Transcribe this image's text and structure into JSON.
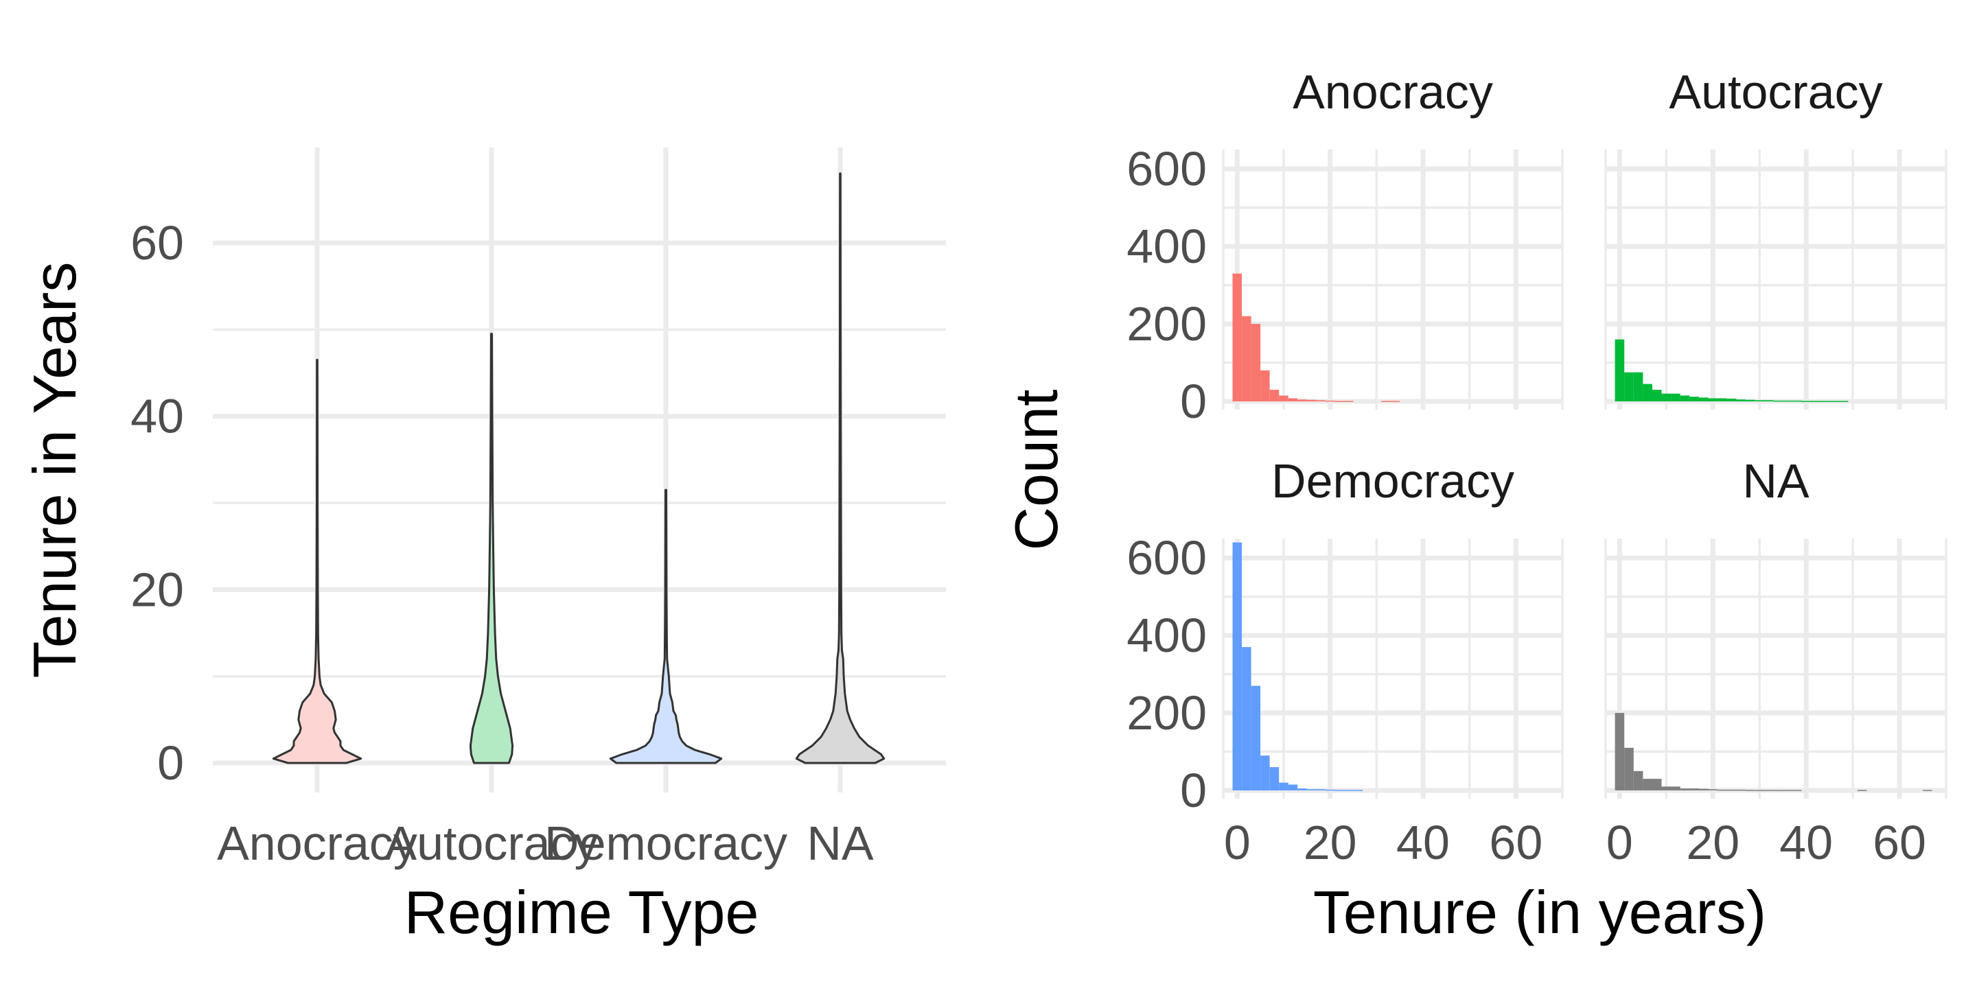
{
  "chart_data": [
    {
      "type": "violin",
      "title": "",
      "xlabel": "Regime Type",
      "ylabel": "Tenure in Years",
      "categories": [
        "Anocracy",
        "Autocracy",
        "Democracy",
        "NA"
      ],
      "ylim": [
        -3.4,
        71
      ],
      "yticks": [
        0,
        20,
        40,
        60
      ],
      "grid": true,
      "legend": "none",
      "series": [
        {
          "category": "Anocracy",
          "color": "#F8766D",
          "max": 46.5,
          "density": [
            [
              0,
              0.5
            ],
            [
              0.5,
              0.75
            ],
            [
              1,
              0.6
            ],
            [
              1.5,
              0.45
            ],
            [
              2,
              0.4
            ],
            [
              2.5,
              0.4
            ],
            [
              3,
              0.35
            ],
            [
              3.5,
              0.3
            ],
            [
              4,
              0.28
            ],
            [
              5,
              0.32
            ],
            [
              6,
              0.3
            ],
            [
              7,
              0.25
            ],
            [
              8,
              0.12
            ],
            [
              9,
              0.06
            ],
            [
              10,
              0.04
            ],
            [
              12,
              0.025
            ],
            [
              15,
              0.015
            ],
            [
              20,
              0.01
            ],
            [
              30,
              0.006
            ],
            [
              46.5,
              0.004
            ]
          ]
        },
        {
          "category": "Autocracy",
          "color": "#00BA38",
          "max": 49.5,
          "density": [
            [
              0,
              0.3
            ],
            [
              1,
              0.35
            ],
            [
              2,
              0.36
            ],
            [
              3,
              0.34
            ],
            [
              4,
              0.32
            ],
            [
              5,
              0.28
            ],
            [
              6,
              0.24
            ],
            [
              7,
              0.2
            ],
            [
              8,
              0.16
            ],
            [
              10,
              0.11
            ],
            [
              12,
              0.08
            ],
            [
              15,
              0.06
            ],
            [
              20,
              0.04
            ],
            [
              25,
              0.03
            ],
            [
              30,
              0.02
            ],
            [
              40,
              0.012
            ],
            [
              49.5,
              0.006
            ]
          ]
        },
        {
          "category": "Democracy",
          "color": "#619CFF",
          "max": 31.5,
          "density": [
            [
              0,
              0.85
            ],
            [
              0.5,
              0.95
            ],
            [
              1,
              0.75
            ],
            [
              1.5,
              0.5
            ],
            [
              2,
              0.35
            ],
            [
              2.5,
              0.28
            ],
            [
              3,
              0.24
            ],
            [
              3.5,
              0.22
            ],
            [
              4,
              0.21
            ],
            [
              4.5,
              0.2
            ],
            [
              5,
              0.18
            ],
            [
              5.5,
              0.17
            ],
            [
              6,
              0.13
            ],
            [
              7,
              0.11
            ],
            [
              8,
              0.07
            ],
            [
              9,
              0.06
            ],
            [
              10,
              0.05
            ],
            [
              11,
              0.035
            ],
            [
              12,
              0.02
            ],
            [
              15,
              0.015
            ],
            [
              20,
              0.01
            ],
            [
              31.5,
              0.006
            ]
          ]
        },
        {
          "category": "NA",
          "color": "#7F7F7F",
          "max": 68,
          "density": [
            [
              0,
              0.6
            ],
            [
              0.5,
              0.75
            ],
            [
              1,
              0.7
            ],
            [
              2,
              0.48
            ],
            [
              3,
              0.33
            ],
            [
              4,
              0.24
            ],
            [
              5,
              0.17
            ],
            [
              6,
              0.12
            ],
            [
              8,
              0.08
            ],
            [
              10,
              0.06
            ],
            [
              12,
              0.05
            ],
            [
              13,
              0.03
            ],
            [
              15,
              0.02
            ],
            [
              20,
              0.015
            ],
            [
              30,
              0.012
            ],
            [
              40,
              0.008
            ],
            [
              50,
              0.006
            ],
            [
              68,
              0.004
            ]
          ]
        }
      ]
    },
    {
      "type": "histogram",
      "title": "",
      "xlabel": "Tenure (in years)",
      "ylabel": "Count",
      "xlim": [
        -3,
        70
      ],
      "ylim": [
        0,
        650
      ],
      "xticks": [
        0,
        20,
        40,
        60
      ],
      "yticks": [
        0,
        200,
        400,
        600
      ],
      "binwidth": 2,
      "grid": true,
      "legend": "none",
      "facets": [
        {
          "label": "Anocracy",
          "color": "#F8766D",
          "counts": [
            330,
            220,
            200,
            80,
            30,
            15,
            8,
            5,
            4,
            3,
            2,
            1,
            1,
            0,
            0,
            0,
            1,
            1,
            0,
            0,
            0,
            0,
            0,
            0,
            0,
            0,
            0,
            0,
            0,
            0,
            0,
            0,
            0,
            0,
            0
          ]
        },
        {
          "label": "Autocracy",
          "color": "#00BA38",
          "counts": [
            160,
            75,
            75,
            45,
            30,
            20,
            20,
            15,
            12,
            10,
            8,
            8,
            7,
            5,
            4,
            3,
            3,
            2,
            2,
            2,
            1,
            1,
            1,
            1,
            1,
            0,
            0,
            0,
            0,
            0,
            0,
            0,
            0,
            0,
            0
          ]
        },
        {
          "label": "Democracy",
          "color": "#619CFF",
          "counts": [
            640,
            370,
            270,
            90,
            60,
            20,
            15,
            5,
            3,
            3,
            2,
            1,
            1,
            1,
            0,
            0,
            0,
            0,
            0,
            0,
            0,
            0,
            0,
            0,
            0,
            0,
            0,
            0,
            0,
            0,
            0,
            0,
            0,
            0,
            0
          ]
        },
        {
          "label": "NA",
          "color": "#7F7F7F",
          "counts": [
            200,
            110,
            50,
            30,
            30,
            10,
            10,
            5,
            5,
            4,
            3,
            2,
            2,
            2,
            1,
            1,
            1,
            1,
            1,
            1,
            0,
            0,
            0,
            0,
            0,
            0,
            1,
            0,
            0,
            0,
            0,
            0,
            0,
            1,
            0
          ]
        }
      ]
    }
  ]
}
